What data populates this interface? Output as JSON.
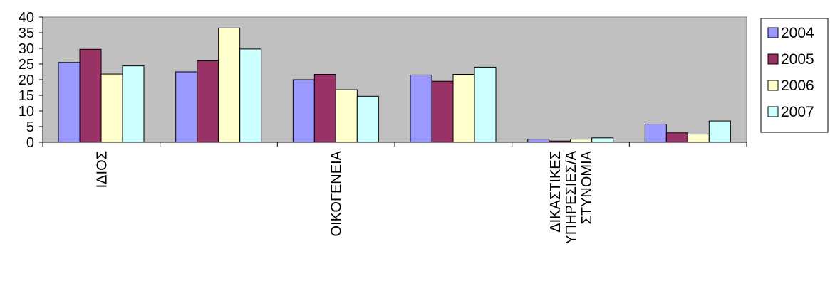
{
  "chart_data": {
    "type": "bar",
    "categories": [
      "ΙΔΙΟΣ",
      "",
      "ΟΙΚΟΓΕΝΕΙΑ",
      "",
      "ΔΙΚΑΣΤΙΚΕΣ ΥΠΗΡΕΣΙΕΣ/Α ΣΤΥΝΟΜΙΑ",
      ""
    ],
    "category_label_lines": [
      [
        "ΙΔΙΟΣ"
      ],
      [],
      [
        "ΟΙΚΟΓΕΝΕΙΑ"
      ],
      [],
      [
        "ΔΙΚΑΣΤΙΚΕΣ",
        "ΥΠΗΡΕΣΙΕΣ/Α",
        "ΣΤΥΝΟΜΙΑ"
      ],
      []
    ],
    "series": [
      {
        "name": "2004",
        "color": "#9999FF",
        "values": [
          25.5,
          22.5,
          20.0,
          21.5,
          1.0,
          5.8
        ]
      },
      {
        "name": "2005",
        "color": "#993366",
        "values": [
          29.7,
          26.0,
          21.7,
          19.5,
          0.4,
          3.0
        ]
      },
      {
        "name": "2006",
        "color": "#FFFFCC",
        "values": [
          21.8,
          36.5,
          16.8,
          21.7,
          1.0,
          2.6
        ]
      },
      {
        "name": "2007",
        "color": "#CCFFFF",
        "values": [
          24.4,
          29.8,
          14.7,
          24.0,
          1.4,
          6.8
        ]
      }
    ],
    "ylim": [
      0,
      40
    ],
    "y_ticks": [
      "0",
      "5",
      "10",
      "15",
      "20",
      "25",
      "30",
      "35",
      "40"
    ],
    "xlabel": "",
    "ylabel": "",
    "title": "",
    "grid": false,
    "plot_background": "#C0C0C0",
    "legend_position": "right"
  }
}
